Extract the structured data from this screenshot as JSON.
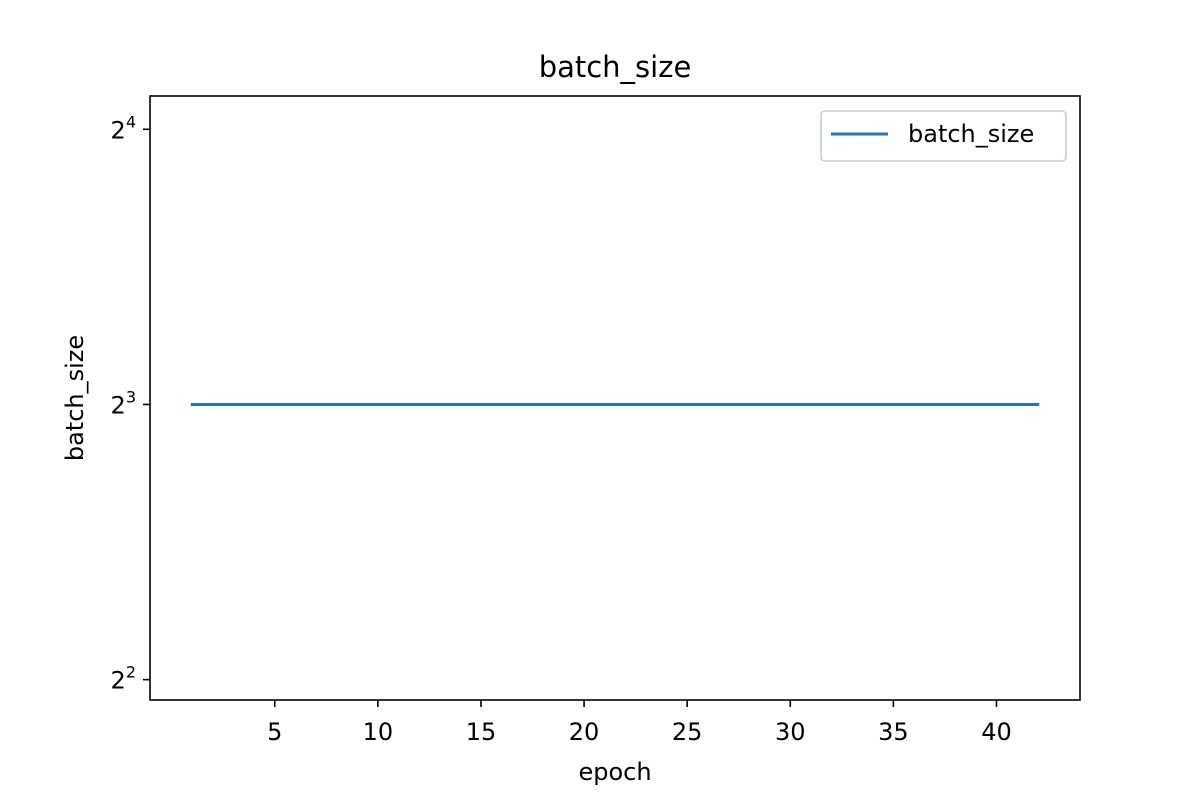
{
  "chart_data": {
    "type": "line",
    "title": "batch_size",
    "xlabel": "epoch",
    "ylabel": "batch_size",
    "x_ticks": [
      5,
      10,
      15,
      20,
      25,
      30,
      35,
      40
    ],
    "y_scale": "log2",
    "y_ticks": [
      {
        "value": 4,
        "base": "2",
        "exp": "2"
      },
      {
        "value": 8,
        "base": "2",
        "exp": "3"
      },
      {
        "value": 16,
        "base": "2",
        "exp": "4"
      }
    ],
    "xlim": [
      -1.05,
      44.05
    ],
    "ylim": [
      3.8,
      17.4
    ],
    "grid": false,
    "legend_position": "top-right",
    "series": [
      {
        "name": "batch_size",
        "color": "#1f77b4",
        "x": [
          1,
          42
        ],
        "y": [
          8,
          8
        ]
      }
    ]
  }
}
